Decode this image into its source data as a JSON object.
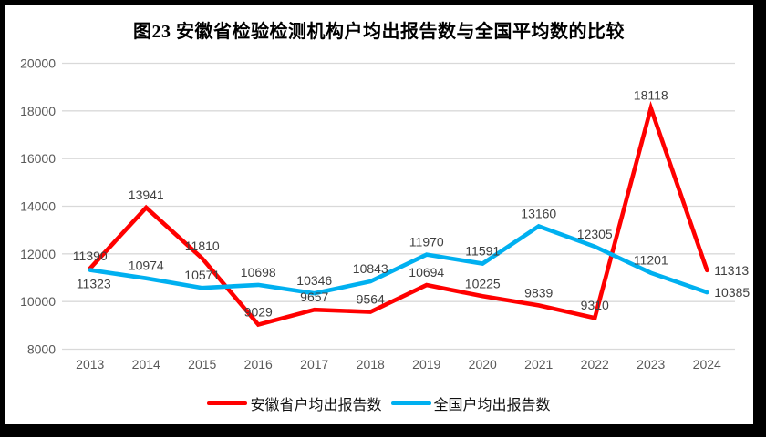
{
  "chart_data": {
    "type": "line",
    "title": "图23 安徽省检验检测机构户均出报告数与全国平均数的比较",
    "categories": [
      "2013",
      "2014",
      "2015",
      "2016",
      "2017",
      "2018",
      "2019",
      "2020",
      "2021",
      "2022",
      "2023",
      "2024"
    ],
    "series": [
      {
        "name": "安徽省户均出报告数",
        "color": "#FF0000",
        "values": [
          11390,
          13941,
          11810,
          9029,
          9657,
          9564,
          10694,
          10225,
          9839,
          9310,
          18118,
          11313
        ]
      },
      {
        "name": "全国户均出报告数",
        "color": "#00B0F0",
        "values": [
          11323,
          10974,
          10571,
          10698,
          10346,
          10843,
          11970,
          11591,
          13160,
          12305,
          11201,
          10385
        ]
      }
    ],
    "xlabel": "",
    "ylabel": "",
    "ylim": [
      8000,
      20000
    ],
    "ytick_step": 2000,
    "ytick_labels": [
      "8000",
      "10000",
      "12000",
      "14000",
      "16000",
      "18000",
      "20000"
    ],
    "grid": "horizontal",
    "gridline_color": "#D9D9D9",
    "axis_tick_color": "#595959",
    "data_label_color": "#404040",
    "data_labels_visible": true,
    "legend_position": "bottom",
    "frame_border_color": "#000000",
    "background_color": "#FFFFFF"
  }
}
